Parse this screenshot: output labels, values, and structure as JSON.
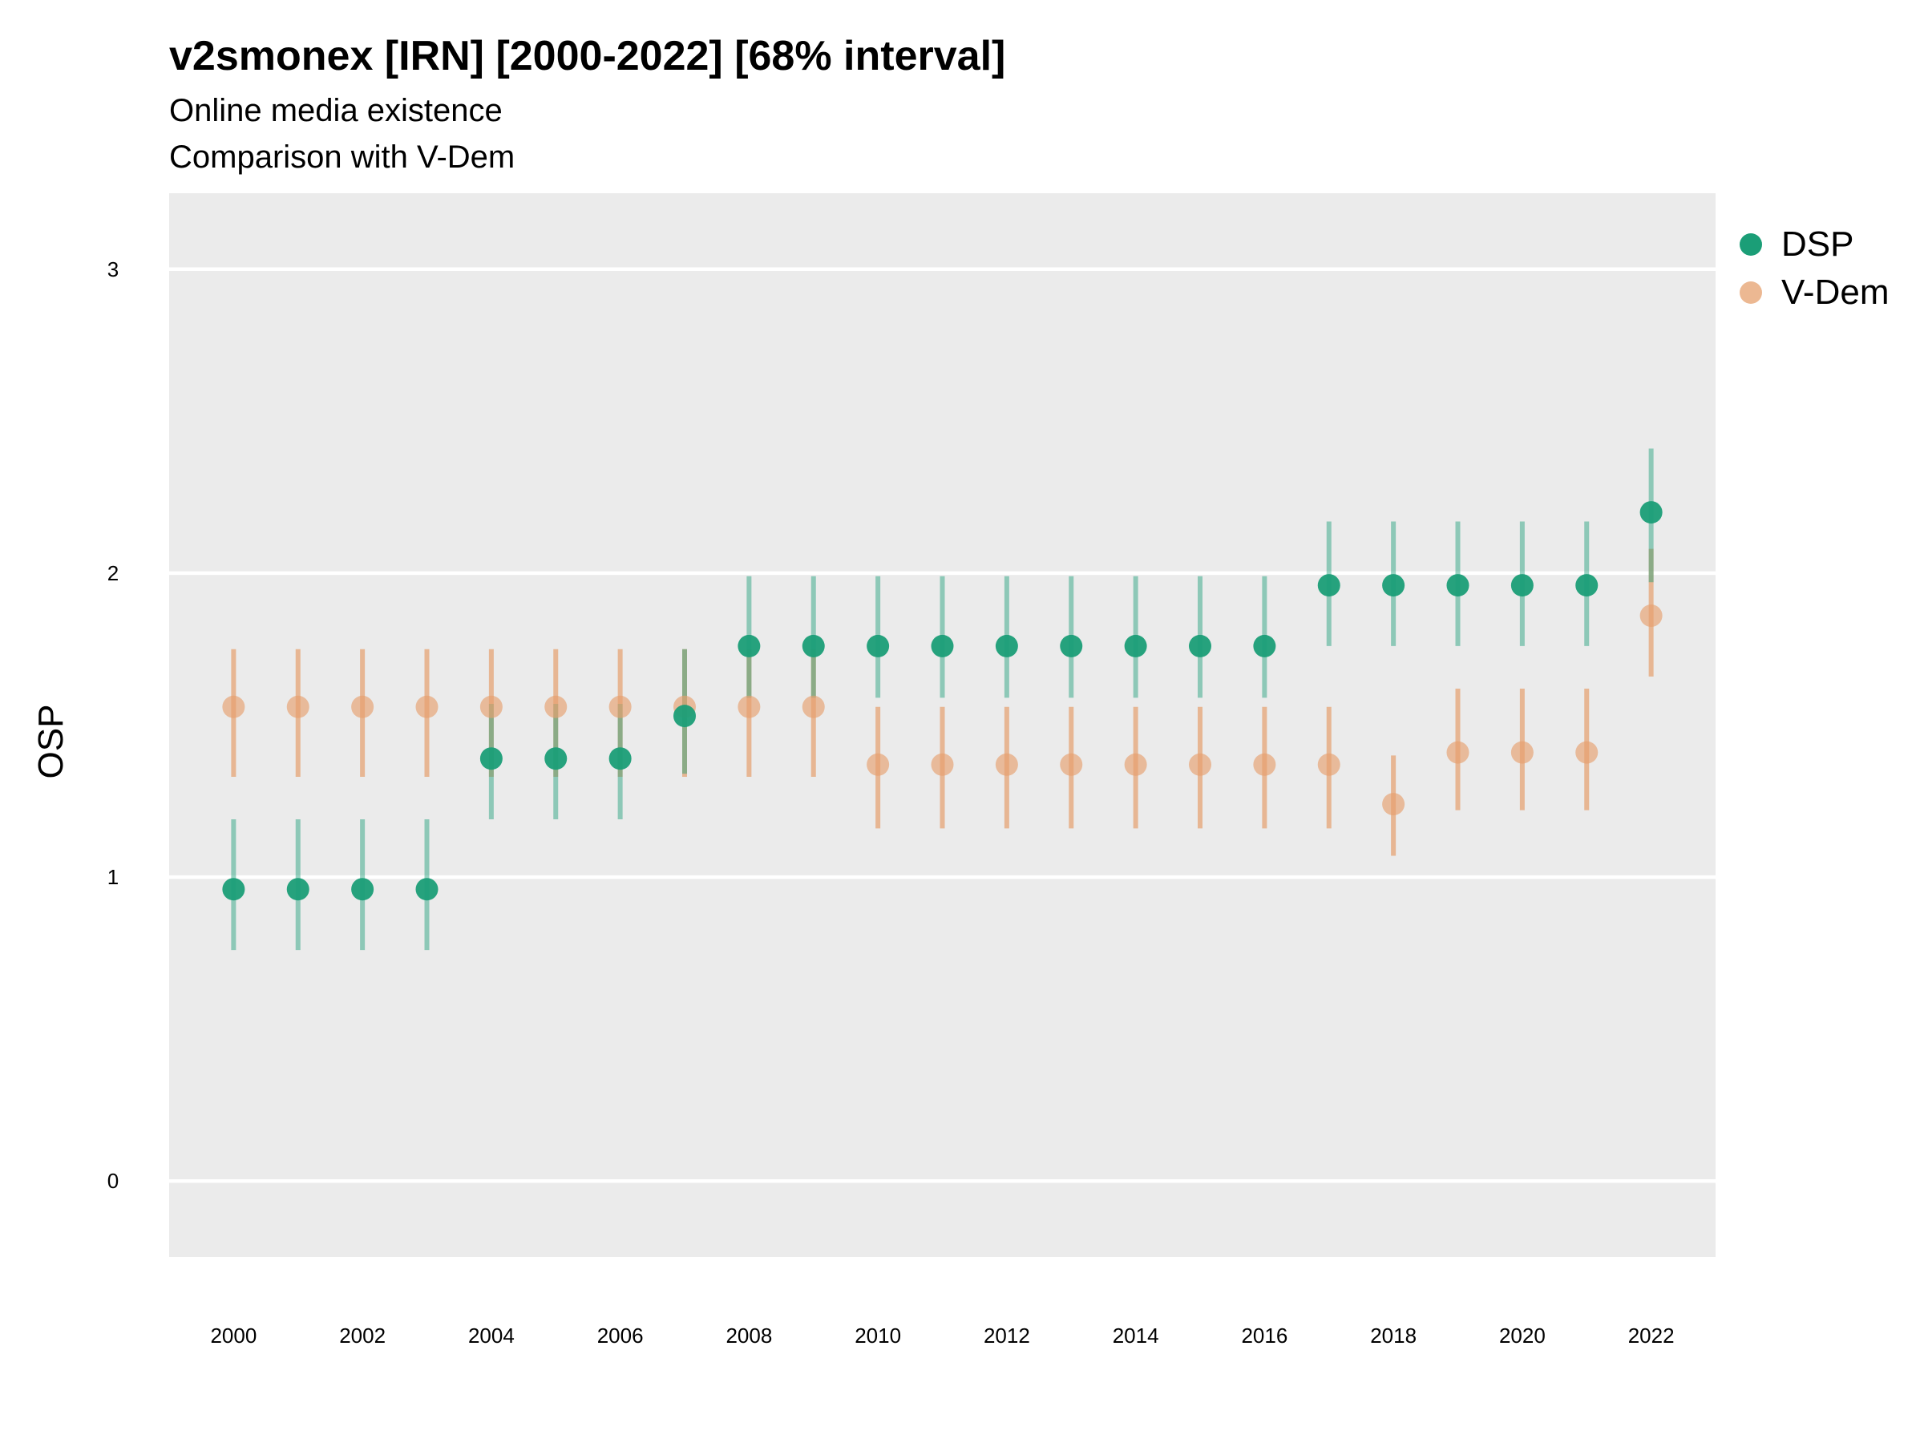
{
  "title": "v2smonex [IRN] [2000-2022] [68% interval]",
  "subtitle_line1": "Online media existence",
  "subtitle_line2": "Comparison with V-Dem",
  "colors": {
    "dsp": "#1b9e77",
    "vdem": "#e6a06e",
    "panel": "#ebebeb",
    "grid": "#ffffff"
  },
  "chart_data": {
    "type": "scatter",
    "ylabel": "OSP",
    "xlabel": "",
    "xlim": [
      1999,
      2023
    ],
    "ylim": [
      -0.25,
      3.25
    ],
    "yticks": [
      0,
      1,
      2,
      3
    ],
    "xticks": [
      2000,
      2002,
      2004,
      2006,
      2008,
      2010,
      2012,
      2014,
      2016,
      2018,
      2020,
      2022
    ],
    "grid": "horizontal",
    "legend_position": "right",
    "years": [
      2000,
      2001,
      2002,
      2003,
      2004,
      2005,
      2006,
      2007,
      2008,
      2009,
      2010,
      2011,
      2012,
      2013,
      2014,
      2015,
      2016,
      2017,
      2018,
      2019,
      2020,
      2021,
      2022
    ],
    "series": [
      {
        "name": "DSP",
        "color": "#1b9e77",
        "values": [
          0.96,
          0.96,
          0.96,
          0.96,
          1.39,
          1.39,
          1.39,
          1.53,
          1.76,
          1.76,
          1.76,
          1.76,
          1.76,
          1.76,
          1.76,
          1.76,
          1.76,
          1.96,
          1.96,
          1.96,
          1.96,
          1.96,
          2.2
        ],
        "lower": [
          0.76,
          0.76,
          0.76,
          0.76,
          1.19,
          1.19,
          1.19,
          1.34,
          1.59,
          1.59,
          1.59,
          1.59,
          1.59,
          1.59,
          1.59,
          1.59,
          1.59,
          1.76,
          1.76,
          1.76,
          1.76,
          1.76,
          1.97
        ],
        "upper": [
          1.19,
          1.19,
          1.19,
          1.19,
          1.57,
          1.57,
          1.57,
          1.75,
          1.99,
          1.99,
          1.99,
          1.99,
          1.99,
          1.99,
          1.99,
          1.99,
          1.99,
          2.17,
          2.17,
          2.17,
          2.17,
          2.17,
          2.41
        ]
      },
      {
        "name": "V-Dem",
        "color": "#e6a06e",
        "values": [
          1.56,
          1.56,
          1.56,
          1.56,
          1.56,
          1.56,
          1.56,
          1.56,
          1.56,
          1.56,
          1.37,
          1.37,
          1.37,
          1.37,
          1.37,
          1.37,
          1.37,
          1.37,
          1.24,
          1.41,
          1.41,
          1.41,
          1.86
        ],
        "lower": [
          1.33,
          1.33,
          1.33,
          1.33,
          1.33,
          1.33,
          1.33,
          1.33,
          1.33,
          1.33,
          1.16,
          1.16,
          1.16,
          1.16,
          1.16,
          1.16,
          1.16,
          1.16,
          1.07,
          1.22,
          1.22,
          1.22,
          1.66
        ],
        "upper": [
          1.75,
          1.75,
          1.75,
          1.75,
          1.75,
          1.75,
          1.75,
          1.75,
          1.75,
          1.75,
          1.56,
          1.56,
          1.56,
          1.56,
          1.56,
          1.56,
          1.56,
          1.56,
          1.4,
          1.62,
          1.62,
          1.62,
          2.08
        ]
      }
    ]
  }
}
